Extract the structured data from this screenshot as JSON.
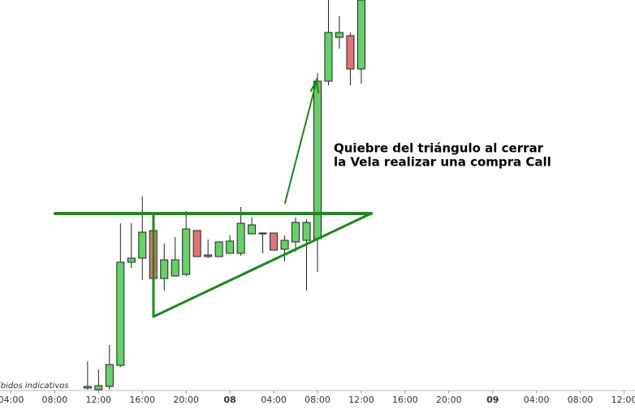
{
  "chart_data": {
    "type": "candlestick",
    "annotation": [
      "Quiebre del triángulo al cerrar",
      "la Vela realizar una compra Call"
    ],
    "footnote": "ibidos indicativos",
    "x": [
      11,
      12,
      13,
      14,
      15,
      16,
      17,
      18,
      19,
      20,
      21,
      22,
      23,
      24,
      25,
      26,
      27,
      28,
      29,
      30,
      31,
      32,
      33,
      34,
      35,
      36
    ],
    "open": [
      2,
      0,
      4,
      30,
      157,
      162,
      196,
      137,
      140,
      142,
      196,
      166,
      164,
      168,
      168,
      192,
      193,
      193,
      173,
      182,
      184,
      186,
      380,
      434,
      436,
      395
    ],
    "high": [
      35,
      25,
      55,
      205,
      205,
      238,
      215,
      180,
      188,
      220,
      196,
      185,
      182,
      190,
      225,
      212,
      193,
      193,
      190,
      212,
      210,
      390,
      480,
      460,
      440,
      480
    ],
    "low": [
      0,
      0,
      0,
      28,
      150,
      135,
      135,
      122,
      140,
      140,
      164,
      162,
      164,
      168,
      165,
      192,
      168,
      172,
      158,
      170,
      122,
      145,
      375,
      420,
      375,
      377
    ],
    "close": [
      4,
      5,
      31,
      157,
      162,
      194,
      137,
      160,
      160,
      198,
      164,
      164,
      182,
      183,
      205,
      203,
      193,
      172,
      184,
      206,
      206,
      380,
      440,
      440,
      395,
      480
    ],
    "up_color": "#66d166",
    "down_color": "#e07575",
    "xlim": [
      3,
      61
    ],
    "ylim": [
      0,
      480
    ],
    "xticks": [
      {
        "value": 4,
        "label": "04:00"
      },
      {
        "value": 8,
        "label": "08:00"
      },
      {
        "value": 12,
        "label": "12:00"
      },
      {
        "value": 16,
        "label": "16:00"
      },
      {
        "value": 20,
        "label": "20:00"
      },
      {
        "value": 24,
        "label": "08"
      },
      {
        "value": 28,
        "label": "04:00"
      },
      {
        "value": 32,
        "label": "08:00"
      },
      {
        "value": 36,
        "label": "12:00"
      },
      {
        "value": 40,
        "label": "16:00"
      },
      {
        "value": 44,
        "label": "20:00"
      },
      {
        "value": 48,
        "label": "09"
      },
      {
        "value": 52,
        "label": "04:00"
      },
      {
        "value": 56,
        "label": "08:00"
      },
      {
        "value": 60,
        "label": "12:00"
      }
    ]
  }
}
